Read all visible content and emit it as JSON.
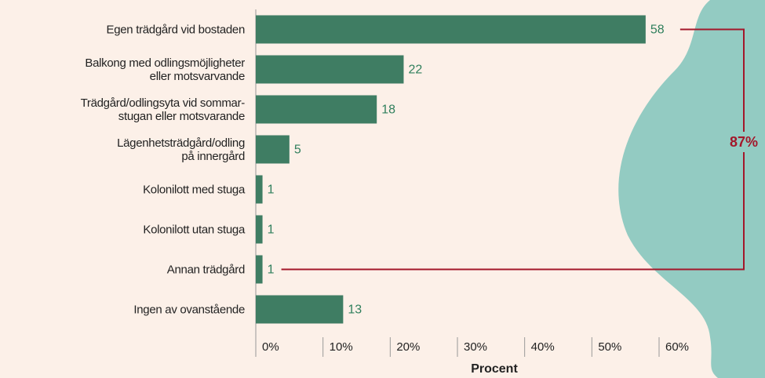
{
  "chart_data": {
    "type": "bar",
    "orientation": "horizontal",
    "categories": [
      "Egen trädgård vid bostaden",
      "Balkong med odlingsmöjligheter\neller motsvarvande",
      "Trädgård/odlingsyta vid sommar-\nstugan eller motsvarande",
      "Lägenhetsträdgård/odling\npå innergård",
      "Kolonilott med stuga",
      "Kolonilott utan stuga",
      "Annan trädgård",
      "Ingen av ovanstående"
    ],
    "values": [
      58,
      22,
      18,
      5,
      1,
      1,
      1,
      13
    ],
    "color": "#3f7d63",
    "label_color": "#2f7f5c",
    "xlabel": "Procent",
    "xlim": [
      0,
      60
    ],
    "xticks": [
      {
        "value": 0,
        "label": "0%"
      },
      {
        "value": 10,
        "label": "10%"
      },
      {
        "value": 20,
        "label": "20%"
      },
      {
        "value": 30,
        "label": "30%"
      },
      {
        "value": 40,
        "label": "40%"
      },
      {
        "value": 50,
        "label": "50%"
      },
      {
        "value": 60,
        "label": "60%"
      }
    ],
    "annotation": {
      "text": "87%",
      "color": "#a3172a"
    }
  }
}
